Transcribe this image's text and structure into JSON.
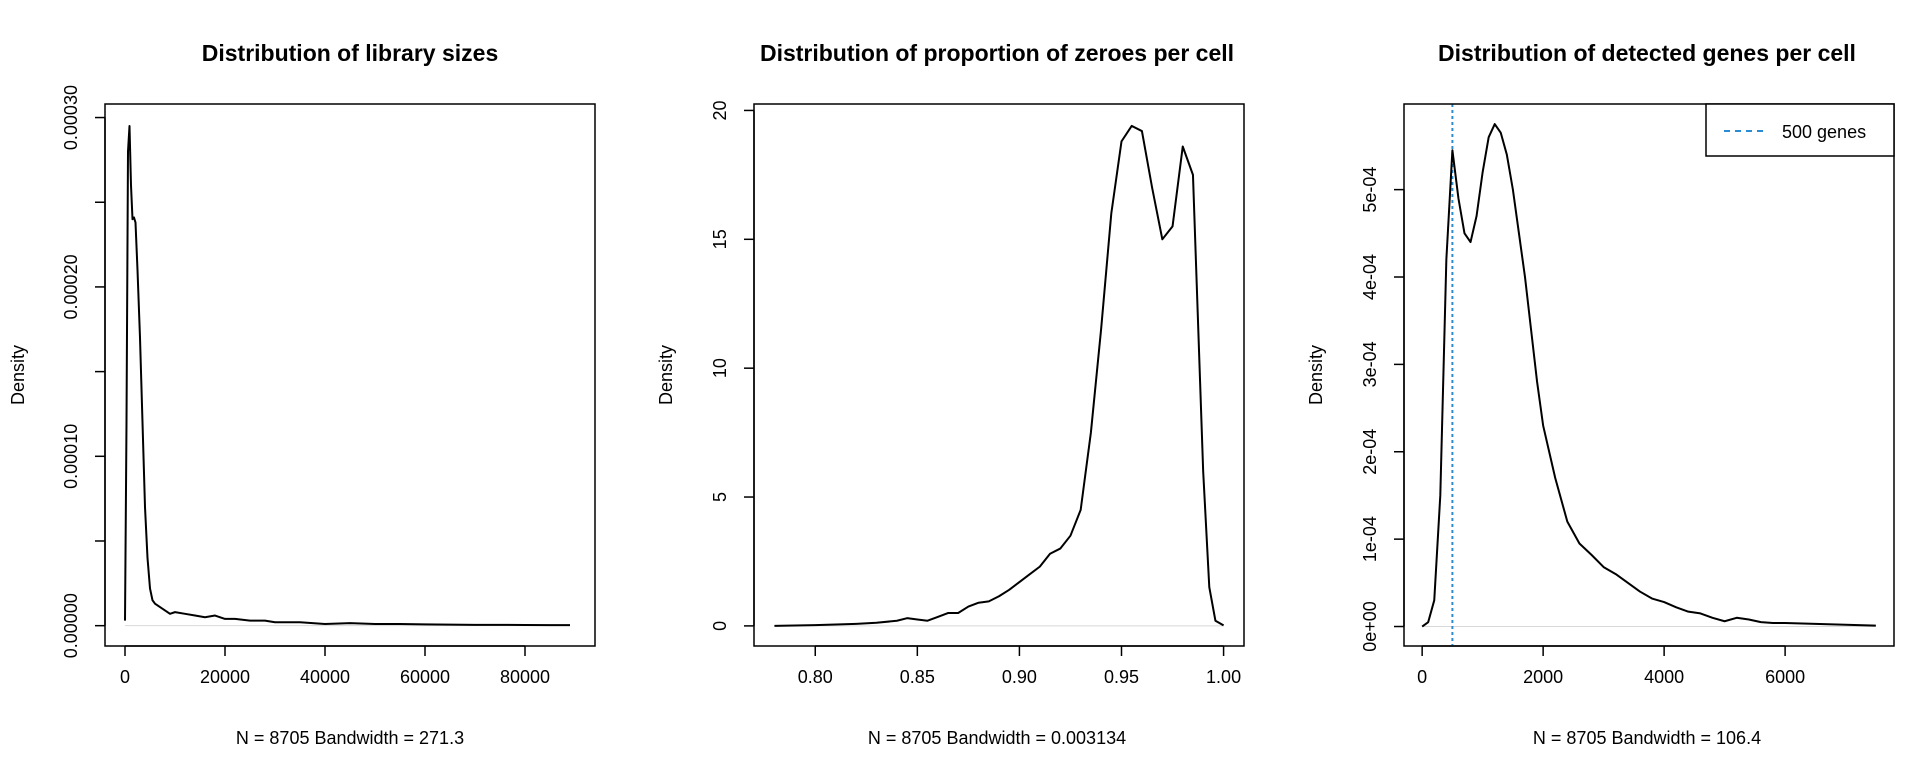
{
  "chart_data": [
    {
      "type": "line",
      "title": "Distribution of library sizes",
      "xlabel": "N = 8705   Bandwidth = 271.3",
      "ylabel": "Density",
      "xlim": [
        -4000,
        94000
      ],
      "ylim": [
        -1.2e-05,
        0.000308
      ],
      "xticks": [
        0,
        20000,
        40000,
        60000,
        80000
      ],
      "xtick_labels": [
        "0",
        "20000",
        "40000",
        "60000",
        "80000"
      ],
      "yticks": [
        0,
        5e-05,
        0.0001,
        0.00015,
        0.0002,
        0.00025,
        0.0003
      ],
      "ytick_labels": [
        "0.00000",
        "",
        "0.00010",
        "",
        "0.00020",
        "",
        "0.00030"
      ],
      "series": [
        {
          "name": "density",
          "x": [
            0,
            300,
            600,
            900,
            1200,
            1500,
            1800,
            2100,
            2500,
            3000,
            3500,
            4000,
            4500,
            5000,
            5500,
            6000,
            7000,
            8000,
            9000,
            10000,
            12000,
            14000,
            16000,
            18000,
            20000,
            22000,
            25000,
            28000,
            30000,
            35000,
            40000,
            45000,
            50000,
            55000,
            60000,
            65000,
            70000,
            75000,
            80000,
            85000,
            89000
          ],
          "y": [
            3e-06,
            0.00012,
            0.00028,
            0.000295,
            0.00026,
            0.00024,
            0.000241,
            0.000238,
            0.00021,
            0.00017,
            0.00012,
            7e-05,
            4e-05,
            2.2e-05,
            1.5e-05,
            1.3e-05,
            1.1e-05,
            9e-06,
            7e-06,
            8e-06,
            7e-06,
            6e-06,
            5e-06,
            6e-06,
            4e-06,
            4e-06,
            3e-06,
            3e-06,
            2e-06,
            2e-06,
            1e-06,
            1.5e-06,
            1e-06,
            1e-06,
            8e-07,
            6e-07,
            5e-07,
            5e-07,
            4e-07,
            3e-07,
            3e-07
          ]
        }
      ]
    },
    {
      "type": "line",
      "title": "Distribution of proportion of zeroes per cell",
      "xlabel": "N = 8705   Bandwidth = 0.003134",
      "ylabel": "Density",
      "xlim": [
        0.77,
        1.01
      ],
      "ylim": [
        -0.78,
        20.25
      ],
      "xticks": [
        0.8,
        0.85,
        0.9,
        0.95,
        1.0
      ],
      "xtick_labels": [
        "0.80",
        "0.85",
        "0.90",
        "0.95",
        "1.00"
      ],
      "yticks": [
        0,
        5,
        10,
        15,
        20
      ],
      "ytick_labels": [
        "0",
        "5",
        "10",
        "15",
        "20"
      ],
      "series": [
        {
          "name": "density",
          "x": [
            0.78,
            0.8,
            0.82,
            0.83,
            0.84,
            0.845,
            0.85,
            0.855,
            0.86,
            0.865,
            0.87,
            0.875,
            0.88,
            0.885,
            0.89,
            0.895,
            0.9,
            0.905,
            0.91,
            0.915,
            0.92,
            0.925,
            0.93,
            0.935,
            0.94,
            0.945,
            0.95,
            0.955,
            0.96,
            0.965,
            0.97,
            0.975,
            0.98,
            0.985,
            0.99,
            0.993,
            0.996,
            1.0
          ],
          "y": [
            0,
            0.03,
            0.08,
            0.12,
            0.2,
            0.3,
            0.25,
            0.2,
            0.35,
            0.5,
            0.5,
            0.75,
            0.9,
            0.95,
            1.15,
            1.4,
            1.7,
            2.0,
            2.3,
            2.8,
            3.0,
            3.5,
            4.5,
            7.5,
            11.5,
            16.0,
            18.8,
            19.4,
            19.2,
            17.0,
            15.0,
            15.5,
            18.6,
            17.5,
            6.0,
            1.5,
            0.2,
            0.02
          ]
        }
      ]
    },
    {
      "type": "line",
      "title": "Distribution of detected genes per cell",
      "xlabel": "N = 8705   Bandwidth = 106.4",
      "ylabel": "Density",
      "xlim": [
        -300,
        7800
      ],
      "ylim": [
        -2.23e-05,
        0.000598
      ],
      "xticks": [
        0,
        2000,
        4000,
        6000
      ],
      "xtick_labels": [
        "0",
        "2000",
        "4000",
        "6000"
      ],
      "yticks": [
        0,
        0.0001,
        0.0002,
        0.0003,
        0.0004,
        0.0005
      ],
      "ytick_labels": [
        "0e+00",
        "1e-04",
        "2e-04",
        "3e-04",
        "4e-04",
        "5e-04"
      ],
      "legend": {
        "label": "500 genes",
        "position": "top-right"
      },
      "reference_line": {
        "x": 500,
        "label": "500 genes",
        "color": "#2b8cd6"
      },
      "series": [
        {
          "name": "density",
          "x": [
            0,
            100,
            200,
            300,
            400,
            500,
            600,
            700,
            800,
            900,
            1000,
            1100,
            1200,
            1300,
            1400,
            1500,
            1600,
            1700,
            1800,
            1900,
            2000,
            2200,
            2400,
            2600,
            2800,
            3000,
            3200,
            3400,
            3600,
            3800,
            4000,
            4200,
            4400,
            4600,
            4800,
            5000,
            5200,
            5400,
            5600,
            5800,
            6000,
            6500,
            7000,
            7500
          ],
          "y": [
            0,
            5e-06,
            3e-05,
            0.00015,
            0.00042,
            0.000545,
            0.00049,
            0.00045,
            0.00044,
            0.00047,
            0.00052,
            0.00056,
            0.000575,
            0.000565,
            0.00054,
            0.0005,
            0.00045,
            0.0004,
            0.00034,
            0.00028,
            0.00023,
            0.00017,
            0.00012,
            9.5e-05,
            8.2e-05,
            6.8e-05,
            6e-05,
            5e-05,
            4e-05,
            3.2e-05,
            2.8e-05,
            2.2e-05,
            1.7e-05,
            1.5e-05,
            1e-05,
            6e-06,
            1e-05,
            8e-06,
            5e-06,
            4e-06,
            4e-06,
            3e-06,
            2e-06,
            1e-06
          ]
        }
      ]
    }
  ]
}
